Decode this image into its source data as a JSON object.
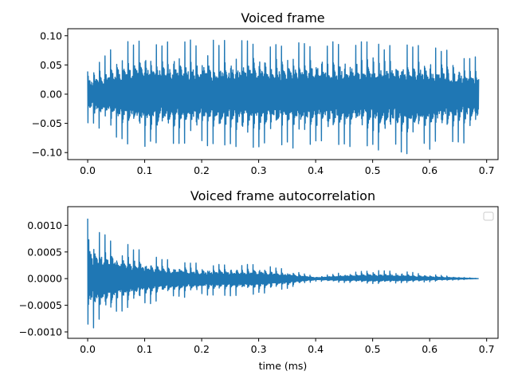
{
  "chart_data": [
    {
      "type": "line",
      "title": "Voiced frame",
      "xlabel": "",
      "ylabel": "",
      "xlim": [
        -0.035,
        0.72
      ],
      "ylim": [
        -0.112,
        0.112
      ],
      "xticks": [
        0.0,
        0.1,
        0.2,
        0.3,
        0.4,
        0.5,
        0.6,
        0.7
      ],
      "xtick_labels": [
        "0.0",
        "0.1",
        "0.2",
        "0.3",
        "0.4",
        "0.5",
        "0.6",
        "0.7"
      ],
      "yticks": [
        0.1,
        0.05,
        0.0,
        -0.05,
        -0.1
      ],
      "ytick_labels": [
        "0.10",
        "0.05",
        "0.00",
        "−0.05",
        "−0.10"
      ],
      "grid": false,
      "series": [
        {
          "color": "#1f77b4",
          "x_range": [
            0.0,
            0.686
          ],
          "envelope_max": [
            [
              0.0,
              0.045
            ],
            [
              0.05,
              0.085
            ],
            [
              0.1,
              0.1
            ],
            [
              0.15,
              0.095
            ],
            [
              0.2,
              0.093
            ],
            [
              0.3,
              0.092
            ],
            [
              0.4,
              0.092
            ],
            [
              0.5,
              0.09
            ],
            [
              0.6,
              0.085
            ],
            [
              0.686,
              0.065
            ]
          ],
          "envelope_min": [
            [
              0.0,
              -0.05
            ],
            [
              0.05,
              -0.08
            ],
            [
              0.1,
              -0.095
            ],
            [
              0.2,
              -0.093
            ],
            [
              0.3,
              -0.095
            ],
            [
              0.4,
              -0.093
            ],
            [
              0.5,
              -0.095
            ],
            [
              0.57,
              -0.105
            ],
            [
              0.6,
              -0.095
            ],
            [
              0.686,
              -0.08
            ]
          ],
          "pitch_period": 0.01
        }
      ]
    },
    {
      "type": "line",
      "title": "Voiced frame autocorrelation",
      "xlabel": "time (ms)",
      "ylabel": "",
      "xlim": [
        -0.035,
        0.72
      ],
      "ylim": [
        -0.00112,
        0.00135
      ],
      "xticks": [
        0.0,
        0.1,
        0.2,
        0.3,
        0.4,
        0.5,
        0.6,
        0.7
      ],
      "xtick_labels": [
        "0.0",
        "0.1",
        "0.2",
        "0.3",
        "0.4",
        "0.5",
        "0.6",
        "0.7"
      ],
      "yticks": [
        0.001,
        0.0005,
        0.0,
        -0.0005,
        -0.001
      ],
      "ytick_labels": [
        "0.0010",
        "0.0005",
        "0.0000",
        "−0.0005",
        "−0.0010"
      ],
      "grid": false,
      "legend": {
        "position": "top-right",
        "entries": []
      },
      "series": [
        {
          "color": "#1f77b4",
          "x_range": [
            0.0,
            0.686
          ],
          "envelope_max": [
            [
              0.0,
              0.0013
            ],
            [
              0.01,
              0.00095
            ],
            [
              0.05,
              0.00075
            ],
            [
              0.1,
              0.0005
            ],
            [
              0.15,
              0.00035
            ],
            [
              0.2,
              0.00028
            ],
            [
              0.25,
              0.00028
            ],
            [
              0.3,
              0.00027
            ],
            [
              0.35,
              0.00018
            ],
            [
              0.4,
              4e-05
            ],
            [
              0.45,
              0.00012
            ],
            [
              0.5,
              0.00016
            ],
            [
              0.55,
              0.00014
            ],
            [
              0.6,
              8e-05
            ],
            [
              0.686,
              0.0
            ]
          ],
          "envelope_min": [
            [
              0.0,
              -0.001
            ],
            [
              0.01,
              -0.00095
            ],
            [
              0.05,
              -0.00072
            ],
            [
              0.1,
              -0.0005
            ],
            [
              0.15,
              -0.00038
            ],
            [
              0.2,
              -0.00033
            ],
            [
              0.25,
              -0.00033
            ],
            [
              0.3,
              -0.0003
            ],
            [
              0.35,
              -0.0002
            ],
            [
              0.4,
              -5e-05
            ],
            [
              0.45,
              -8e-05
            ],
            [
              0.5,
              -0.0001
            ],
            [
              0.55,
              -9e-05
            ],
            [
              0.6,
              -6e-05
            ],
            [
              0.686,
              0.0
            ]
          ],
          "pitch_period": 0.01
        }
      ]
    }
  ]
}
